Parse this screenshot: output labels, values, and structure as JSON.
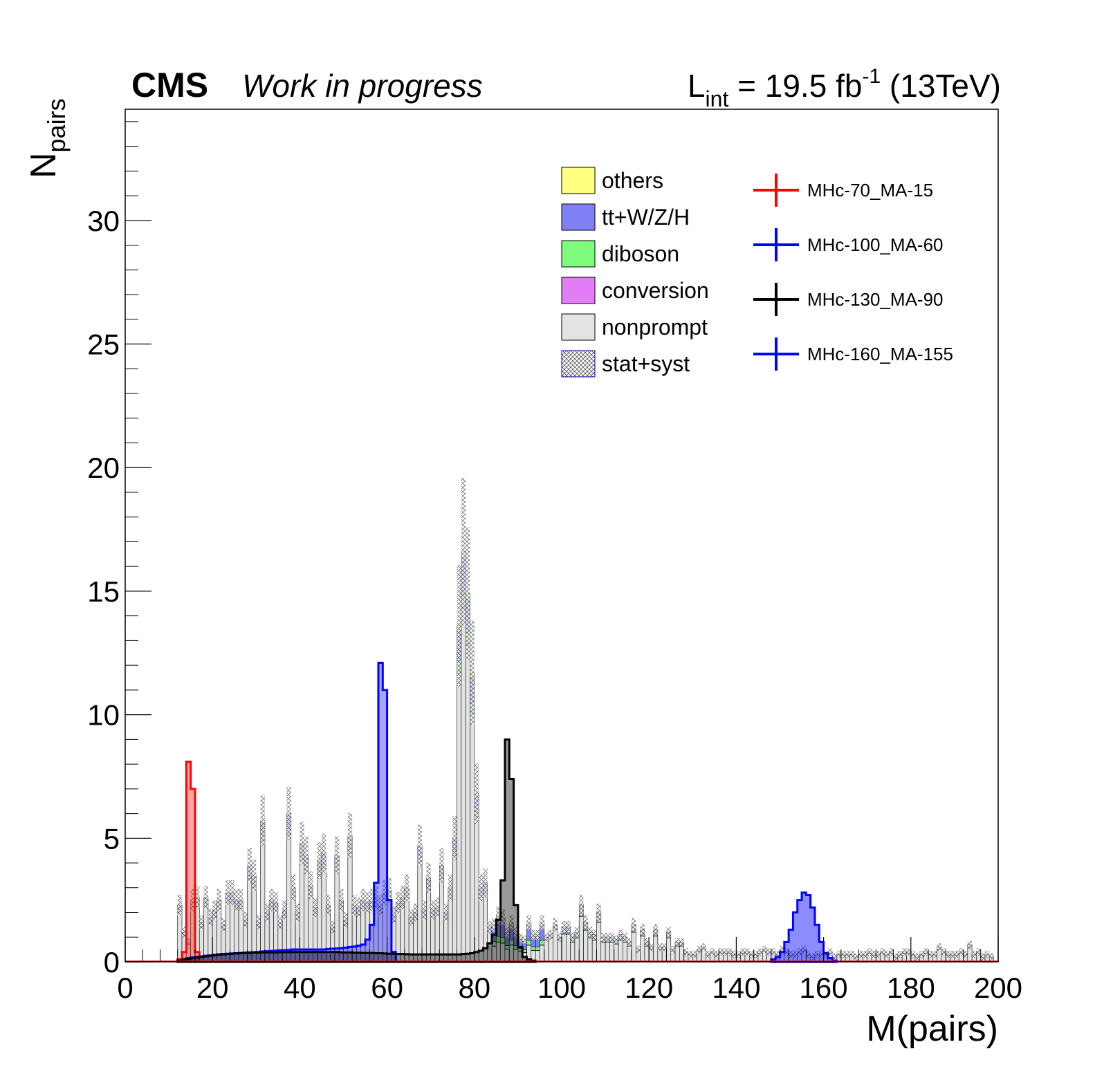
{
  "header": {
    "experiment": "CMS",
    "status": "Work in progress",
    "lumi_prefix": "L",
    "lumi_sub": "int",
    "lumi_value": " = 19.5 fb",
    "lumi_sup": "-1",
    "lumi_energy": " (13TeV)"
  },
  "chart_data": {
    "type": "stacked histogram",
    "xlabel": "M(pairs)",
    "ylabel_main": "N",
    "ylabel_sub": "pairs",
    "xlim": [
      0,
      200
    ],
    "ylim": [
      0,
      34.5
    ],
    "x_ticks": [
      "0",
      "20",
      "40",
      "60",
      "80",
      "100",
      "120",
      "140",
      "160",
      "180",
      "200"
    ],
    "y_ticks": [
      "0",
      "5",
      "10",
      "15",
      "20",
      "25",
      "30"
    ],
    "bin_width": 1,
    "background_bins_start": 12,
    "colors": {
      "nonprompt": "#e3e3e3",
      "conversion": "#e27df5",
      "diboson": "#7dfc7d",
      "ttv": "#7f7ff6",
      "others": "#ffff80",
      "signal_70_15": "#ff0000",
      "signal_100_60": "#0000ff",
      "signal_130_90": "#000000",
      "signal_160_155": "#0000ff"
    },
    "legend_background": [
      {
        "label": "others",
        "color": "#ffff80"
      },
      {
        "label": "tt+W/Z/H",
        "color": "#7f7ff6"
      },
      {
        "label": "diboson",
        "color": "#7dfc7d"
      },
      {
        "label": "conversion",
        "color": "#e27df5"
      },
      {
        "label": "nonprompt",
        "color": "#e3e3e3"
      },
      {
        "label": "stat+syst",
        "color": "hatch"
      }
    ],
    "legend_signal": [
      {
        "label": "MHc-70_MA-15",
        "color": "#ff0000"
      },
      {
        "label": "MHc-100_MA-60",
        "color": "#0000ff"
      },
      {
        "label": "MHc-130_MA-90",
        "color": "#000000"
      },
      {
        "label": "MHc-160_MA-155",
        "color": "#0000ff"
      }
    ],
    "background_totals": [
      2.3,
      1.2,
      0.8,
      2.5,
      2.6,
      1.6,
      2.6,
      1.8,
      2.1,
      2.5,
      1.5,
      2.8,
      2.8,
      2.5,
      2.5,
      1.7,
      3.9,
      3.5,
      1.6,
      5.7,
      2.0,
      2.5,
      2.4,
      1.6,
      2.1,
      6.0,
      3.0,
      2.0,
      4.8,
      4.3,
      3.1,
      2.2,
      4.1,
      4.4,
      2.3,
      1.4,
      4.3,
      2.5,
      1.7,
      5.1,
      2.3,
      2.2,
      2.5,
      2.4,
      2.5,
      2.6,
      2.3,
      2.8,
      2.9,
      1.9,
      2.4,
      2.6,
      3.0,
      1.8,
      2.0,
      4.7,
      2.1,
      3.4,
      2.1,
      2.2,
      3.9,
      2.0,
      3.0,
      5.0,
      13.6,
      16.6,
      14.9,
      11.7,
      6.8,
      3.0,
      3.2,
      1.4,
      1.5,
      1.9,
      1.8,
      1.2,
      1.6,
      1.2,
      1.0,
      0.9,
      1.6,
      1.1,
      1.1,
      1.6,
      1.0,
      1.1,
      1.5,
      1.0,
      1.4,
      1.4,
      1.0,
      1.2,
      2.3,
      1.6,
      1.2,
      1.1,
      2.0,
      1.0,
      1.0,
      1.0,
      0.9,
      1.1,
      1.0,
      0.8,
      1.5,
      0.5,
      1.3,
      0.8,
      0.6,
      1.3,
      0.6,
      0.6,
      1.2,
      0.5,
      0.8,
      0.8,
      0.4,
      0.3,
      0.3,
      0.5,
      0.6,
      0.3,
      0.4,
      0.3,
      0.4,
      0.4,
      0.4,
      0.3,
      0.3,
      0.4,
      0.4,
      0.3,
      0.3,
      0.4,
      0.5,
      0.4,
      0.4,
      0.3,
      0.5,
      0.4,
      0.3,
      0.3,
      0.4,
      0.5,
      0.3,
      0.2,
      0.3,
      0.3,
      0.3,
      0.4,
      0.2,
      0.3,
      0.3,
      0.3,
      0.3,
      0.2,
      0.3,
      0.3,
      0.4,
      0.3,
      0.3,
      0.4,
      0.3,
      0.4,
      0.2,
      0.3,
      0.4,
      0.4,
      0.3,
      0.2,
      0.3,
      0.4,
      0.3,
      0.3,
      0.6,
      0.4,
      0.3,
      0.3,
      0.3,
      0.4,
      0.3,
      0.7,
      0.3,
      0.4,
      0.2,
      0.3,
      0.2
    ],
    "signals": [
      {
        "name": "MHc-70_MA-15",
        "x0": 12,
        "values": [
          0.1,
          0.4,
          8.1,
          7.0,
          0.4
        ]
      },
      {
        "name": "MHc-100_MA-60",
        "x0": 12,
        "values": [
          0.05,
          0.1,
          0.15,
          0.18,
          0.2,
          0.22,
          0.25,
          0.26,
          0.28,
          0.3,
          0.32,
          0.33,
          0.34,
          0.35,
          0.36,
          0.37,
          0.38,
          0.39,
          0.4,
          0.42,
          0.43,
          0.44,
          0.45,
          0.46,
          0.47,
          0.48,
          0.5,
          0.5,
          0.5,
          0.5,
          0.5,
          0.5,
          0.5,
          0.5,
          0.52,
          0.53,
          0.54,
          0.55,
          0.57,
          0.6,
          0.62,
          0.65,
          0.7,
          0.9,
          1.5,
          3.2,
          12.1,
          11.0,
          2.5,
          0.4
        ]
      },
      {
        "name": "MHc-130_MA-90",
        "x0": 12,
        "values": [
          0.05,
          0.1,
          0.12,
          0.15,
          0.18,
          0.2,
          0.22,
          0.25,
          0.27,
          0.29,
          0.3,
          0.32,
          0.33,
          0.34,
          0.35,
          0.36,
          0.36,
          0.37,
          0.37,
          0.38,
          0.38,
          0.38,
          0.38,
          0.39,
          0.39,
          0.39,
          0.4,
          0.4,
          0.4,
          0.4,
          0.4,
          0.4,
          0.4,
          0.4,
          0.4,
          0.4,
          0.4,
          0.38,
          0.38,
          0.38,
          0.37,
          0.37,
          0.36,
          0.36,
          0.36,
          0.35,
          0.35,
          0.34,
          0.33,
          0.33,
          0.32,
          0.32,
          0.31,
          0.3,
          0.3,
          0.3,
          0.3,
          0.3,
          0.3,
          0.3,
          0.3,
          0.3,
          0.3,
          0.3,
          0.3,
          0.32,
          0.33,
          0.35,
          0.4,
          0.45,
          0.55,
          0.75,
          1.1,
          1.7,
          3.3,
          9.0,
          7.4,
          2.3,
          0.6,
          0.2,
          0.1,
          0.05
        ]
      },
      {
        "name": "MHc-160_MA-155",
        "x0": 148,
        "values": [
          0.1,
          0.2,
          0.4,
          0.8,
          1.3,
          2.0,
          2.5,
          2.8,
          2.7,
          2.2,
          1.5,
          0.8,
          0.35,
          0.15,
          0.05
        ]
      }
    ]
  }
}
